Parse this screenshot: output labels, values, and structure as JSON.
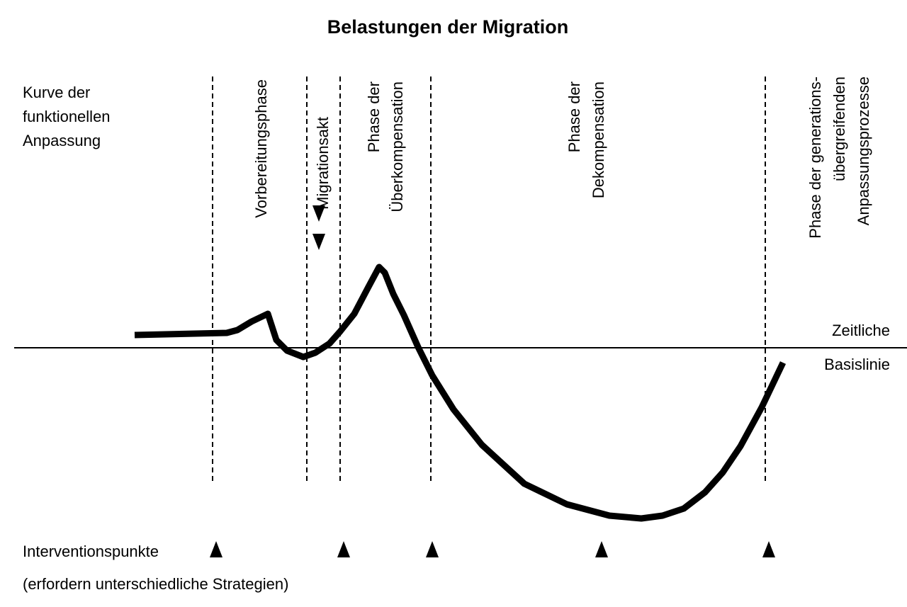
{
  "title": "Belastungen der Migration",
  "curve_label": [
    "Kurve der",
    "funktionellen",
    "Anpassung"
  ],
  "phases": [
    {
      "lines": [
        "Vorbereitungsphase"
      ]
    },
    {
      "lines": [
        "Migrationsakt"
      ]
    },
    {
      "lines": [
        "Phase der",
        "Überkompensation"
      ]
    },
    {
      "lines": [
        "Phase der",
        "Dekompensation"
      ]
    },
    {
      "lines": [
        "Phase der generations-",
        "übergreifenden",
        "Anpassungsprozesse"
      ]
    }
  ],
  "baseline_label": [
    "Zeitliche",
    "Basislinie"
  ],
  "intervention_label": [
    "Interventionspunkte",
    "(erfordern unterschiedliche Strategien)"
  ]
}
